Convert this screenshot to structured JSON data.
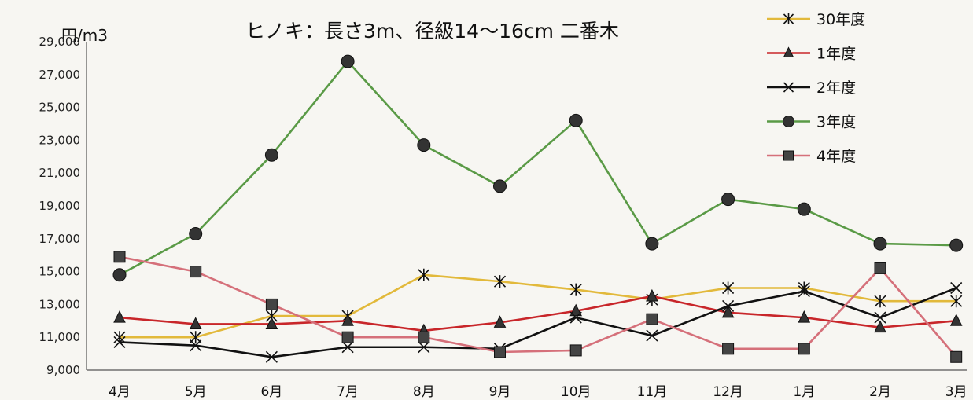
{
  "chart_data": {
    "type": "line",
    "title": "ヒノキ：長さ3m、径級14～16cm 二番木",
    "ylabel": "円/m3",
    "xlabel": "",
    "categories": [
      "4月",
      "5月",
      "6月",
      "7月",
      "8月",
      "9月",
      "10月",
      "11月",
      "12月",
      "1月",
      "2月",
      "3月"
    ],
    "ylim": [
      9000,
      29000
    ],
    "yticks": [
      9000,
      11000,
      13000,
      15000,
      17000,
      19000,
      21000,
      23000,
      25000,
      27000,
      29000
    ],
    "ytick_labels": [
      "9,000",
      "11,000",
      "13,000",
      "15,000",
      "17,000",
      "19,000",
      "21,000",
      "23,000",
      "25,000",
      "27,000",
      "29,000"
    ],
    "legend_position": "top-right",
    "grid": false,
    "series": [
      {
        "name": "30年度",
        "color": "#e2b93b",
        "marker": "asterisk",
        "values": [
          11000,
          11000,
          12300,
          12300,
          14800,
          14400,
          13900,
          13300,
          14000,
          14000,
          13200,
          13200
        ]
      },
      {
        "name": "1年度",
        "color": "#c8262a",
        "marker": "triangle",
        "values": [
          12200,
          11800,
          11800,
          12000,
          11400,
          11900,
          12600,
          13500,
          12500,
          12200,
          11600,
          12000
        ]
      },
      {
        "name": "2年度",
        "color": "#111111",
        "marker": "x",
        "values": [
          10700,
          10500,
          9800,
          10400,
          10400,
          10300,
          12200,
          11100,
          12900,
          13800,
          12200,
          14000
        ]
      },
      {
        "name": "3年度",
        "color": "#5a9a46",
        "marker": "circle",
        "values": [
          14800,
          17300,
          22100,
          27800,
          22700,
          20200,
          24200,
          16700,
          19400,
          18800,
          16700,
          16600
        ]
      },
      {
        "name": "4年度",
        "color": "#d5707a",
        "marker": "square",
        "values": [
          15900,
          15000,
          13000,
          11000,
          11000,
          10100,
          10200,
          12100,
          10300,
          10300,
          15200,
          9800
        ]
      }
    ]
  }
}
